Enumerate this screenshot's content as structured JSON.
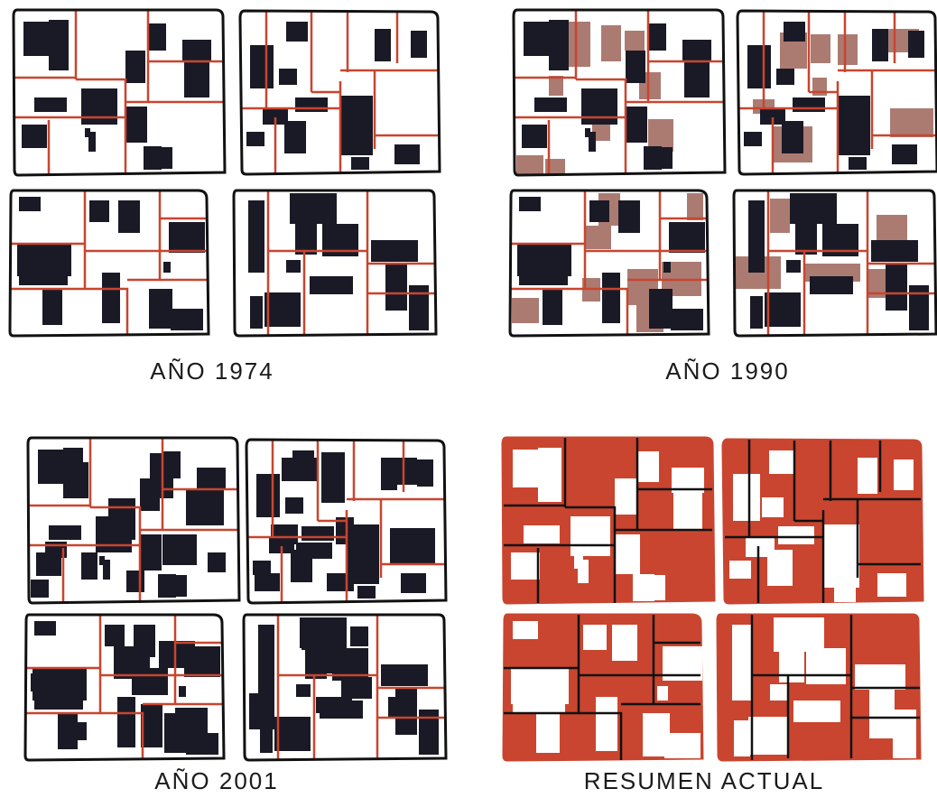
{
  "diagram": {
    "panels": [
      {
        "id": "p1974",
        "label": "AÑO 1974",
        "style": "plain"
      },
      {
        "id": "p1990",
        "label": "AÑO 1990",
        "style": "plain"
      },
      {
        "id": "p2001",
        "label": "AÑO 2001",
        "style": "plain"
      },
      {
        "id": "presumen",
        "label": "RESUMEN ACTUAL",
        "style": "inverted"
      }
    ],
    "colors": {
      "building": "#1a1a26",
      "lot_line": "#c8452f",
      "block_outline": "#111111",
      "new_building": "#ab7b72",
      "summary_fill": "#c9452f",
      "summary_building": "#ffffff"
    }
  }
}
